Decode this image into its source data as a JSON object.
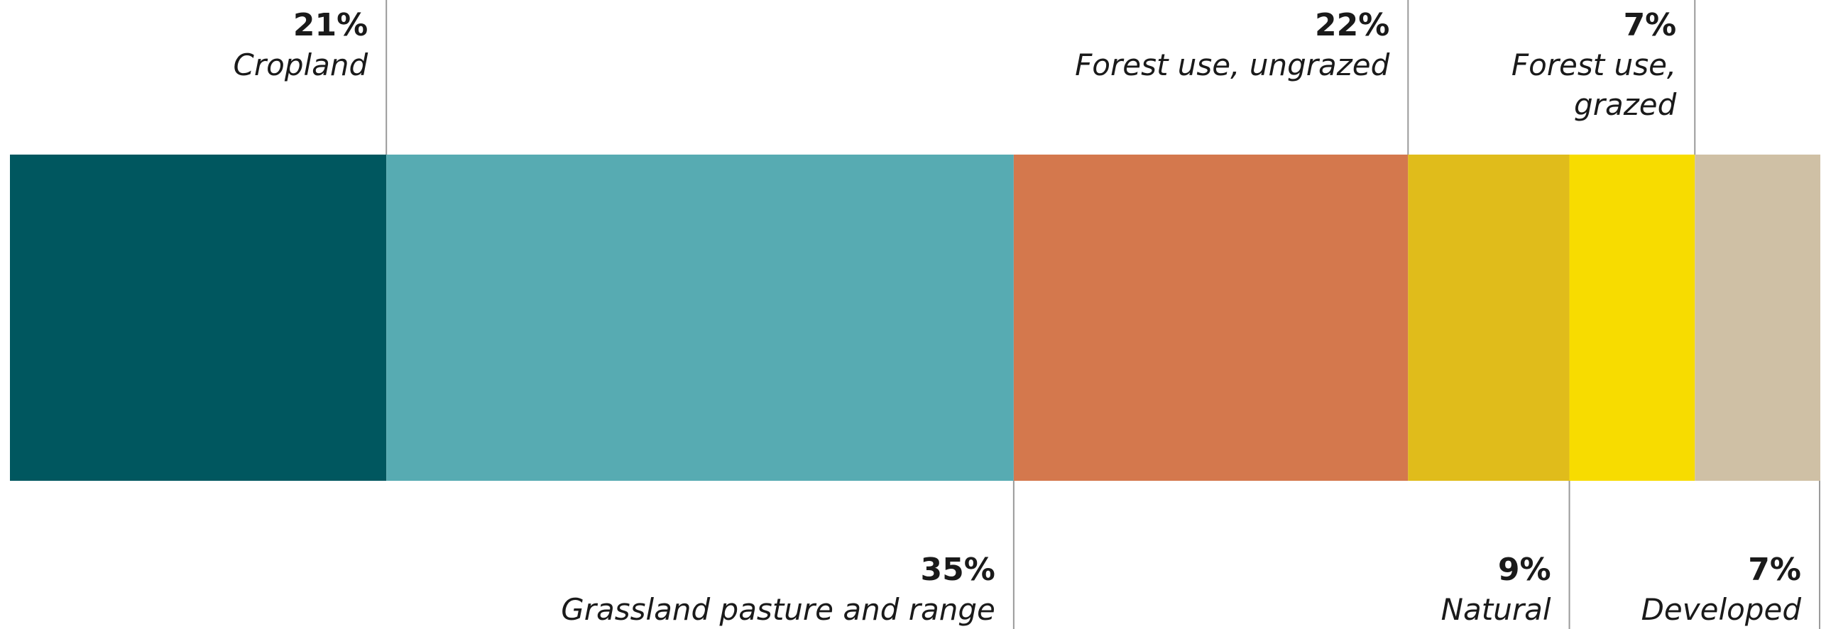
{
  "chart_data": {
    "type": "bar",
    "orientation": "horizontal-stacked-100",
    "title": "",
    "xlabel": "",
    "ylabel": "",
    "segments": [
      {
        "percent_label": "21%",
        "value": 21,
        "label_lines": [
          "Cropland"
        ],
        "color": "#00575f",
        "label_side": "top"
      },
      {
        "percent_label": "35%",
        "value": 35,
        "label_lines": [
          "Grassland pasture and range"
        ],
        "color": "#57abb2",
        "label_side": "bottom"
      },
      {
        "percent_label": "22%",
        "value": 22,
        "label_lines": [
          "Forest use, ungrazed"
        ],
        "color": "#d4784d",
        "label_side": "top"
      },
      {
        "percent_label": "9%",
        "value": 9,
        "label_lines": [
          "Natural"
        ],
        "color": "#e0bc1b",
        "label_side": "bottom"
      },
      {
        "percent_label": "7%",
        "value": 7,
        "label_lines": [
          "Forest use,",
          "grazed"
        ],
        "color": "#f7dc00",
        "label_side": "top"
      },
      {
        "percent_label": "7%",
        "value": 7,
        "label_lines": [
          "Developed"
        ],
        "color": "#cfc0a5",
        "label_side": "bottom"
      }
    ]
  }
}
